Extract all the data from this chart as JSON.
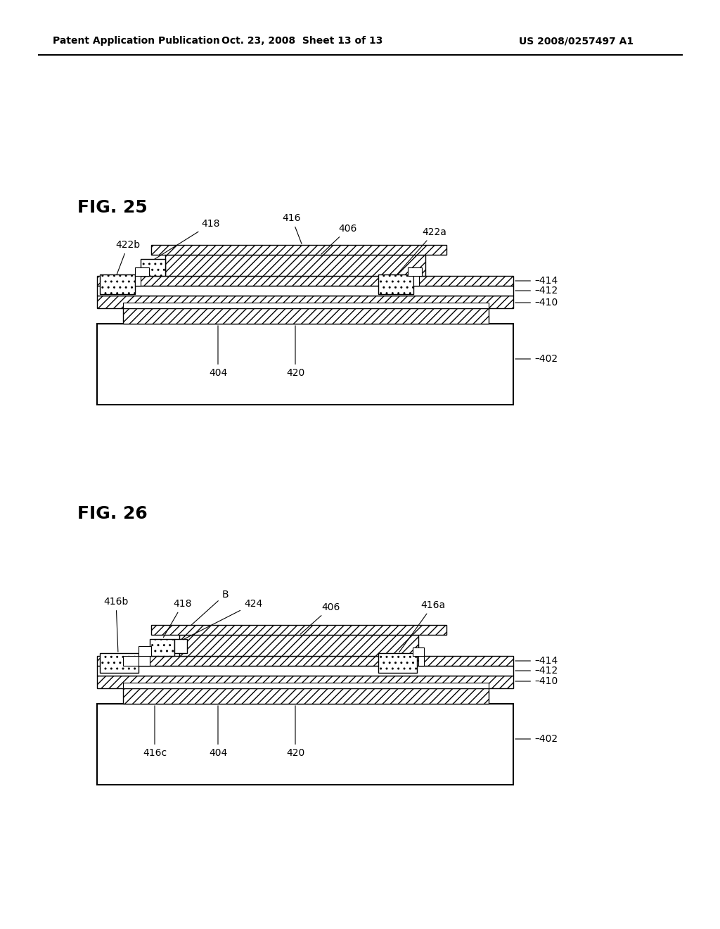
{
  "bg_color": "#ffffff",
  "header_left": "Patent Application Publication",
  "header_mid": "Oct. 23, 2008  Sheet 13 of 13",
  "header_right": "US 2008/0257497 A1",
  "fig25_title": "FIG. 25",
  "fig26_title": "FIG. 26"
}
